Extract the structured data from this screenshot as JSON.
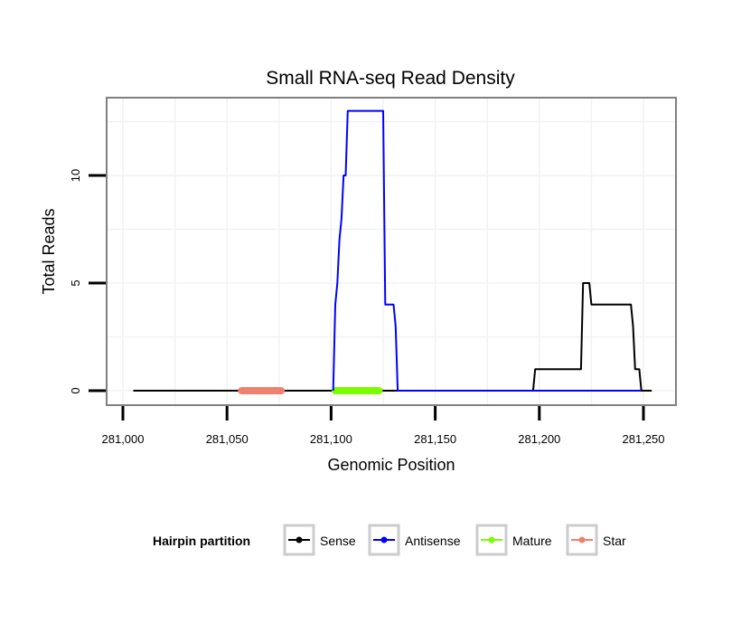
{
  "chart_data": {
    "type": "line",
    "title": "Small RNA-seq Read Density",
    "xlabel": "Genomic Position",
    "ylabel": "Total Reads",
    "xlim": [
      281000,
      281255
    ],
    "ylim": [
      -0.6,
      13.2
    ],
    "x_ticks": [
      281000,
      281050,
      281100,
      281150,
      281200,
      281250
    ],
    "x_tick_labels": [
      "281,000",
      "281,050",
      "281,100",
      "281,150",
      "281,200",
      "281,250"
    ],
    "y_ticks": [
      0,
      5,
      10
    ],
    "y_tick_labels": [
      "0",
      "5",
      "10"
    ],
    "grid": true,
    "legend_title": "Hairpin partition",
    "legend_position": "bottom",
    "series": [
      {
        "name": "Sense",
        "color": "#000000",
        "kind": "line",
        "points": [
          [
            281005,
            0
          ],
          [
            281197,
            0
          ],
          [
            281198,
            1
          ],
          [
            281220,
            1
          ],
          [
            281221,
            5
          ],
          [
            281224,
            5
          ],
          [
            281225,
            4
          ],
          [
            281244,
            4
          ],
          [
            281245,
            3
          ],
          [
            281246,
            1
          ],
          [
            281248,
            1
          ],
          [
            281249,
            0
          ],
          [
            281254,
            0
          ]
        ]
      },
      {
        "name": "Antisense",
        "color": "#0000ff",
        "kind": "line",
        "points": [
          [
            281101,
            0
          ],
          [
            281102,
            4
          ],
          [
            281103,
            5
          ],
          [
            281104,
            7
          ],
          [
            281105,
            8
          ],
          [
            281106,
            10
          ],
          [
            281107,
            10
          ],
          [
            281108,
            13
          ],
          [
            281125,
            13
          ],
          [
            281126,
            4
          ],
          [
            281130,
            4
          ],
          [
            281131,
            3
          ],
          [
            281132,
            0
          ],
          [
            281197,
            0
          ],
          [
            281249,
            0
          ]
        ]
      },
      {
        "name": "Mature",
        "color": "#7cfc00",
        "kind": "segment",
        "points": [
          [
            281102,
            0
          ],
          [
            281123,
            0
          ]
        ]
      },
      {
        "name": "Star",
        "color": "#f08070",
        "kind": "segment",
        "points": [
          [
            281057,
            0
          ],
          [
            281076,
            0
          ]
        ]
      }
    ]
  }
}
